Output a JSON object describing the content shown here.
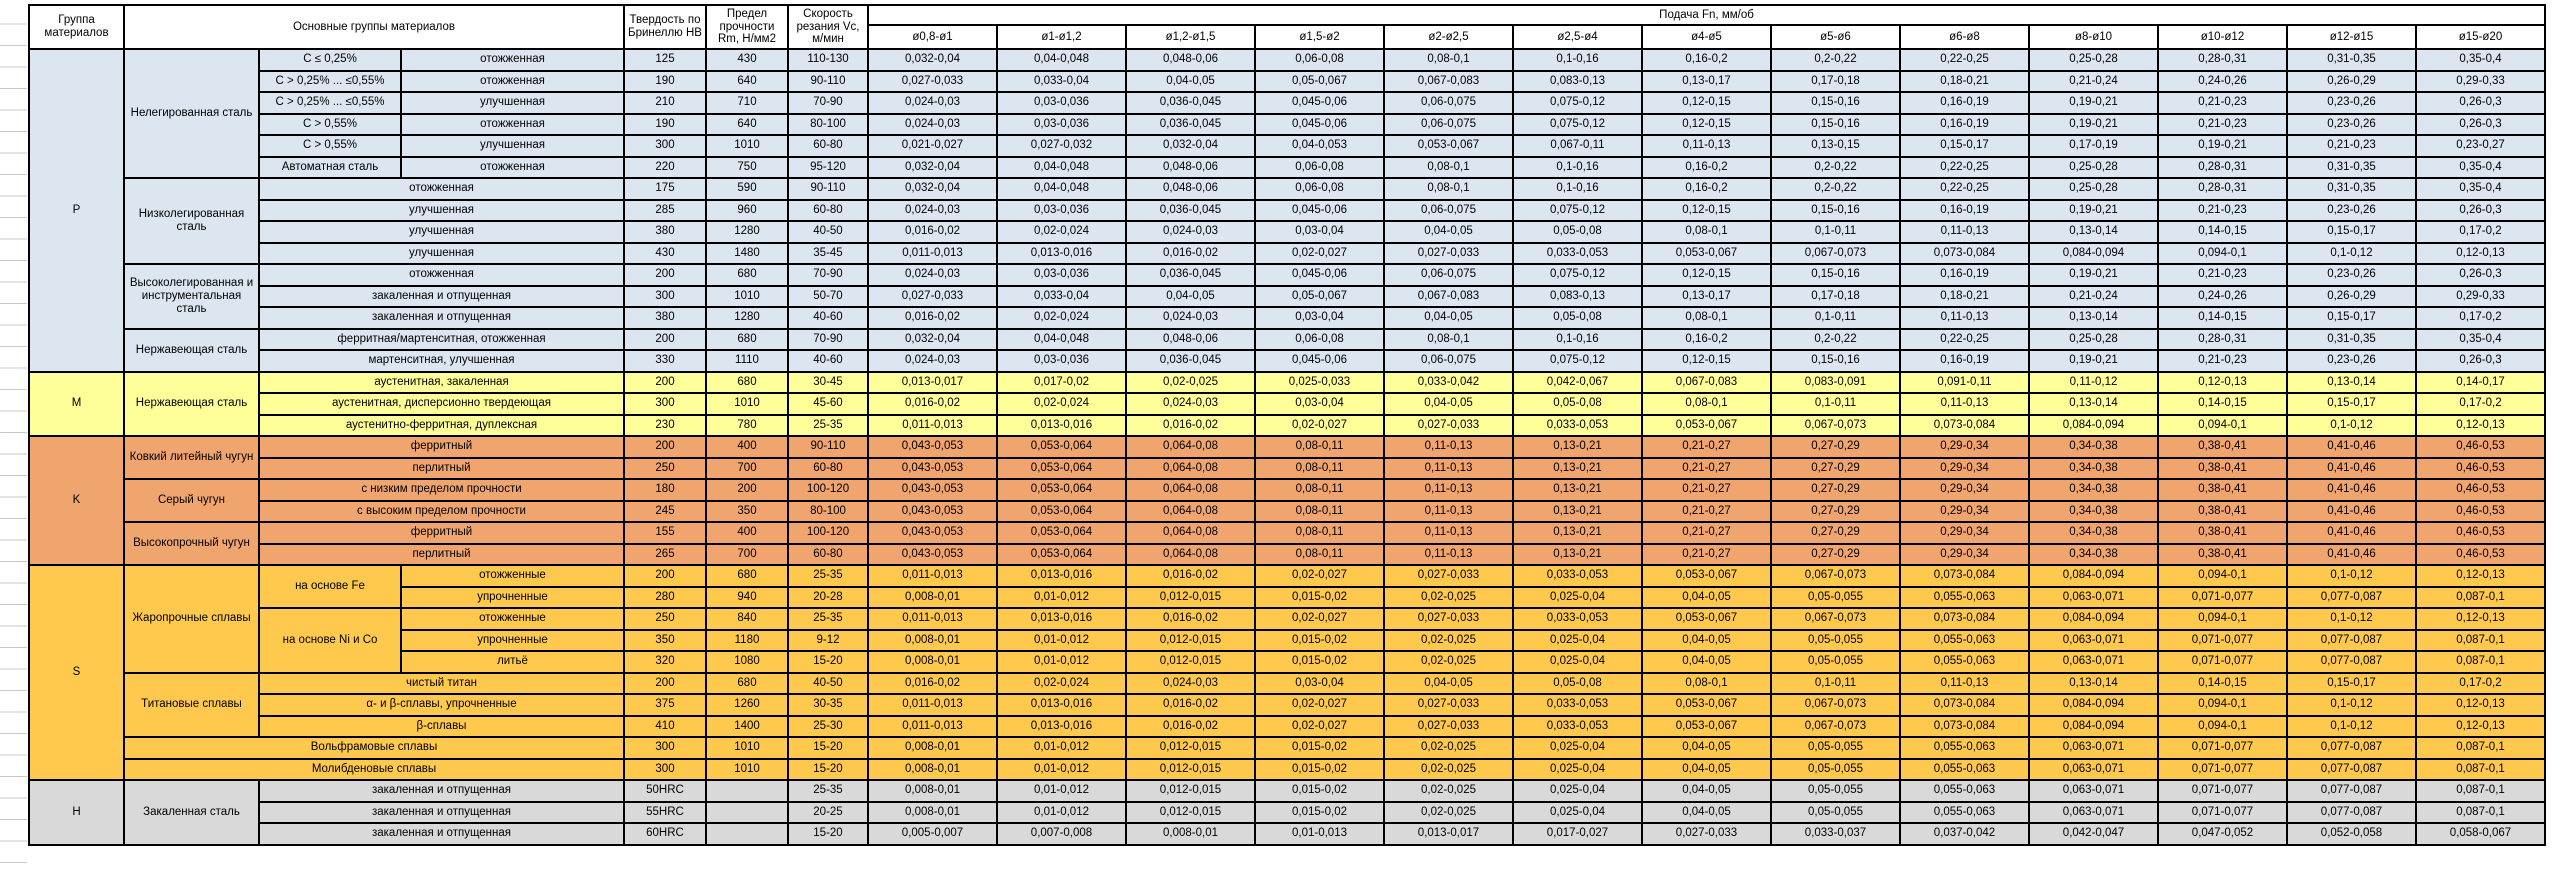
{
  "table": {
    "header": {
      "group": "Группа материалов",
      "materials": "Основные группы материалов",
      "hardness": "Твердость по Бринеллю HB",
      "strength": "Предел прочности Rm, Н/мм2",
      "speed": "Скорость резания Vc, м/мин",
      "feed": "Подача Fn, мм/об",
      "diameters": [
        "ø0,8-ø1",
        "ø1-ø1,2",
        "ø1,2-ø1,5",
        "ø1,5-ø2",
        "ø2-ø2,5",
        "ø2,5-ø4",
        "ø4-ø5",
        "ø5-ø6",
        "ø6-ø8",
        "ø8-ø10",
        "ø10-ø12",
        "ø12-ø15",
        "ø15-ø20"
      ]
    },
    "group_colors": {
      "P": "#dce6f1",
      "M": "#ffff99",
      "K": "#f0a46e",
      "S": "#ffc94e",
      "H": "#d9d9d9"
    },
    "patterns": {
      "A": [
        "0,032-0,04",
        "0,04-0,048",
        "0,048-0,06",
        "0,06-0,08",
        "0,08-0,1",
        "0,1-0,16",
        "0,16-0,2",
        "0,2-0,22",
        "0,22-0,25",
        "0,25-0,28",
        "0,28-0,31",
        "0,31-0,35",
        "0,35-0,4"
      ],
      "B": [
        "0,027-0,033",
        "0,033-0,04",
        "0,04-0,05",
        "0,05-0,067",
        "0,067-0,083",
        "0,083-0,13",
        "0,13-0,17",
        "0,17-0,18",
        "0,18-0,21",
        "0,21-0,24",
        "0,24-0,26",
        "0,26-0,29",
        "0,29-0,33"
      ],
      "C": [
        "0,024-0,03",
        "0,03-0,036",
        "0,036-0,045",
        "0,045-0,06",
        "0,06-0,075",
        "0,075-0,12",
        "0,12-0,15",
        "0,15-0,16",
        "0,16-0,19",
        "0,19-0,21",
        "0,21-0,23",
        "0,23-0,26",
        "0,26-0,3"
      ],
      "D": [
        "0,021-0,027",
        "0,027-0,032",
        "0,032-0,04",
        "0,04-0,053",
        "0,053-0,067",
        "0,067-0,11",
        "0,11-0,13",
        "0,13-0,15",
        "0,15-0,17",
        "0,17-0,19",
        "0,19-0,21",
        "0,21-0,23",
        "0,23-0,27"
      ],
      "E": [
        "0,016-0,02",
        "0,02-0,024",
        "0,024-0,03",
        "0,03-0,04",
        "0,04-0,05",
        "0,05-0,08",
        "0,08-0,1",
        "0,1-0,11",
        "0,11-0,13",
        "0,13-0,14",
        "0,14-0,15",
        "0,15-0,17",
        "0,17-0,2"
      ],
      "F": [
        "0,011-0,013",
        "0,013-0,016",
        "0,016-0,02",
        "0,02-0,027",
        "0,027-0,033",
        "0,033-0,053",
        "0,053-0,067",
        "0,067-0,073",
        "0,073-0,084",
        "0,084-0,094",
        "0,094-0,1",
        "0,1-0,12",
        "0,12-0,13"
      ],
      "G": [
        "0,013-0,017",
        "0,017-0,02",
        "0,02-0,025",
        "0,025-0,033",
        "0,033-0,042",
        "0,042-0,067",
        "0,067-0,083",
        "0,083-0,091",
        "0,091-0,11",
        "0,11-0,12",
        "0,12-0,13",
        "0,13-0,14",
        "0,14-0,17"
      ],
      "H": [
        "0,043-0,053",
        "0,053-0,064",
        "0,064-0,08",
        "0,08-0,11",
        "0,11-0,13",
        "0,13-0,21",
        "0,21-0,27",
        "0,27-0,29",
        "0,29-0,34",
        "0,34-0,38",
        "0,38-0,41",
        "0,41-0,46",
        "0,46-0,53"
      ],
      "I": [
        "0,008-0,01",
        "0,01-0,012",
        "0,012-0,015",
        "0,015-0,02",
        "0,02-0,025",
        "0,025-0,04",
        "0,04-0,05",
        "0,05-0,055",
        "0,055-0,063",
        "0,063-0,071",
        "0,071-0,077",
        "0,077-0,087",
        "0,087-0,1"
      ],
      "J": [
        "0,005-0,007",
        "0,007-0,008",
        "0,008-0,01",
        "0,01-0,013",
        "0,013-0,017",
        "0,017-0,027",
        "0,027-0,033",
        "0,033-0,037",
        "0,037-0,042",
        "0,042-0,047",
        "0,047-0,052",
        "0,052-0,058",
        "0,058-0,067"
      ]
    },
    "rows": [
      {
        "g": "P",
        "labels": [
          {
            "t": "P",
            "rs": 15,
            "n": "group-letter-cell"
          },
          {
            "t": "Нелегированная сталь",
            "rs": 6
          },
          {
            "t": "C ≤ 0,25%"
          },
          {
            "t": "отожженная"
          }
        ],
        "hb": "125",
        "rm": "430",
        "vc": "110-130",
        "fp": "A"
      },
      {
        "g": "P",
        "labels": [
          {
            "t": "C > 0,25% ... ≤0,55%"
          },
          {
            "t": "отожженная"
          }
        ],
        "hb": "190",
        "rm": "640",
        "vc": "90-110",
        "fp": "B"
      },
      {
        "g": "P",
        "labels": [
          {
            "t": "C > 0,25% ... ≤0,55%"
          },
          {
            "t": "улучшенная"
          }
        ],
        "hb": "210",
        "rm": "710",
        "vc": "70-90",
        "fp": "C"
      },
      {
        "g": "P",
        "labels": [
          {
            "t": "C > 0,55%"
          },
          {
            "t": "отожженная"
          }
        ],
        "hb": "190",
        "rm": "640",
        "vc": "80-100",
        "fp": "C"
      },
      {
        "g": "P",
        "labels": [
          {
            "t": "C > 0,55%"
          },
          {
            "t": "улучшенная"
          }
        ],
        "hb": "300",
        "rm": "1010",
        "vc": "60-80",
        "fp": "D"
      },
      {
        "g": "P",
        "labels": [
          {
            "t": "Автоматная сталь"
          },
          {
            "t": "отожженная"
          }
        ],
        "hb": "220",
        "rm": "750",
        "vc": "95-120",
        "fp": "A"
      },
      {
        "g": "P",
        "labels": [
          {
            "t": "Низколегированная сталь",
            "rs": 4
          },
          {
            "t": "отожженная",
            "cs": 2
          }
        ],
        "hb": "175",
        "rm": "590",
        "vc": "90-110",
        "fp": "A"
      },
      {
        "g": "P",
        "labels": [
          {
            "t": "улучшенная",
            "cs": 2
          }
        ],
        "hb": "285",
        "rm": "960",
        "vc": "60-80",
        "fp": "C"
      },
      {
        "g": "P",
        "labels": [
          {
            "t": "улучшенная",
            "cs": 2
          }
        ],
        "hb": "380",
        "rm": "1280",
        "vc": "40-50",
        "fp": "E"
      },
      {
        "g": "P",
        "labels": [
          {
            "t": "улучшенная",
            "cs": 2
          }
        ],
        "hb": "430",
        "rm": "1480",
        "vc": "35-45",
        "fp": "F"
      },
      {
        "g": "P",
        "labels": [
          {
            "t": "Высоколегированная и инструментальная сталь",
            "rs": 3
          },
          {
            "t": "отожженная",
            "cs": 2
          }
        ],
        "hb": "200",
        "rm": "680",
        "vc": "70-90",
        "fp": "C"
      },
      {
        "g": "P",
        "labels": [
          {
            "t": "закаленная и отпущенная",
            "cs": 2
          }
        ],
        "hb": "300",
        "rm": "1010",
        "vc": "50-70",
        "fp": "B"
      },
      {
        "g": "P",
        "labels": [
          {
            "t": "закаленная и отпущенная",
            "cs": 2
          }
        ],
        "hb": "380",
        "rm": "1280",
        "vc": "40-60",
        "fp": "E"
      },
      {
        "g": "P",
        "labels": [
          {
            "t": "Нержавеющая сталь",
            "rs": 2
          },
          {
            "t": "ферритная/мартенситная, отожженная",
            "cs": 2
          }
        ],
        "hb": "200",
        "rm": "680",
        "vc": "70-90",
        "fp": "A"
      },
      {
        "g": "P",
        "labels": [
          {
            "t": "мартенситная, улучшенная",
            "cs": 2
          }
        ],
        "hb": "330",
        "rm": "1110",
        "vc": "40-60",
        "fp": "C"
      },
      {
        "g": "M",
        "labels": [
          {
            "t": "M",
            "rs": 3,
            "n": "group-letter-cell"
          },
          {
            "t": "Нержавеющая сталь",
            "rs": 3
          },
          {
            "t": "аустенитная, закаленная",
            "cs": 2
          }
        ],
        "hb": "200",
        "rm": "680",
        "vc": "30-45",
        "fp": "G"
      },
      {
        "g": "M",
        "labels": [
          {
            "t": "аустенитная, дисперсионно твердеющая",
            "cs": 2
          }
        ],
        "hb": "300",
        "rm": "1010",
        "vc": "45-60",
        "fp": "E"
      },
      {
        "g": "M",
        "labels": [
          {
            "t": "аустенитно-ферритная, дуплексная",
            "cs": 2
          }
        ],
        "hb": "230",
        "rm": "780",
        "vc": "25-35",
        "fp": "F"
      },
      {
        "g": "K",
        "labels": [
          {
            "t": "K",
            "rs": 6,
            "n": "group-letter-cell"
          },
          {
            "t": "Ковкий литейный чугун",
            "rs": 2
          },
          {
            "t": "ферритный",
            "cs": 2
          }
        ],
        "hb": "200",
        "rm": "400",
        "vc": "90-110",
        "fp": "H"
      },
      {
        "g": "K",
        "labels": [
          {
            "t": "перлитный",
            "cs": 2
          }
        ],
        "hb": "250",
        "rm": "700",
        "vc": "60-80",
        "fp": "H"
      },
      {
        "g": "K",
        "labels": [
          {
            "t": "Серый чугун",
            "rs": 2
          },
          {
            "t": "с низким пределом прочности",
            "cs": 2
          }
        ],
        "hb": "180",
        "rm": "200",
        "vc": "100-120",
        "fp": "H"
      },
      {
        "g": "K",
        "labels": [
          {
            "t": "с высоким пределом прочности",
            "cs": 2
          }
        ],
        "hb": "245",
        "rm": "350",
        "vc": "80-100",
        "fp": "H"
      },
      {
        "g": "K",
        "labels": [
          {
            "t": "Высокопрочный чугун",
            "rs": 2
          },
          {
            "t": "ферритный",
            "cs": 2
          }
        ],
        "hb": "155",
        "rm": "400",
        "vc": "100-120",
        "fp": "H"
      },
      {
        "g": "K",
        "labels": [
          {
            "t": "перлитный",
            "cs": 2
          }
        ],
        "hb": "265",
        "rm": "700",
        "vc": "60-80",
        "fp": "H"
      },
      {
        "g": "S",
        "labels": [
          {
            "t": "S",
            "rs": 10,
            "n": "group-letter-cell"
          },
          {
            "t": "Жаропрочные сплавы",
            "rs": 5
          },
          {
            "t": "на основе Fe",
            "rs": 2
          },
          {
            "t": "отожженные"
          }
        ],
        "hb": "200",
        "rm": "680",
        "vc": "25-35",
        "fp": "F"
      },
      {
        "g": "S",
        "labels": [
          {
            "t": "упрочненные"
          }
        ],
        "hb": "280",
        "rm": "940",
        "vc": "20-28",
        "fp": "I"
      },
      {
        "g": "S",
        "labels": [
          {
            "t": "на основе Ni и Co",
            "rs": 3
          },
          {
            "t": "отожженные"
          }
        ],
        "hb": "250",
        "rm": "840",
        "vc": "25-35",
        "fp": "F"
      },
      {
        "g": "S",
        "labels": [
          {
            "t": "упрочненные"
          }
        ],
        "hb": "350",
        "rm": "1180",
        "vc": "9-12",
        "fp": "I"
      },
      {
        "g": "S",
        "labels": [
          {
            "t": "литьё"
          }
        ],
        "hb": "320",
        "rm": "1080",
        "vc": "15-20",
        "fp": "I"
      },
      {
        "g": "S",
        "labels": [
          {
            "t": "Титановые сплавы",
            "rs": 3
          },
          {
            "t": "чистый титан",
            "cs": 2
          }
        ],
        "hb": "200",
        "rm": "680",
        "vc": "40-50",
        "fp": "E"
      },
      {
        "g": "S",
        "labels": [
          {
            "t": "α- и β-сплавы, упрочненные",
            "cs": 2
          }
        ],
        "hb": "375",
        "rm": "1260",
        "vc": "30-35",
        "fp": "F"
      },
      {
        "g": "S",
        "labels": [
          {
            "t": "β-сплавы",
            "cs": 2
          }
        ],
        "hb": "410",
        "rm": "1400",
        "vc": "25-30",
        "fp": "F"
      },
      {
        "g": "S",
        "labels": [
          {
            "t": "Вольфрамовые сплавы",
            "cs": 3
          }
        ],
        "hb": "300",
        "rm": "1010",
        "vc": "15-20",
        "fp": "I"
      },
      {
        "g": "S",
        "labels": [
          {
            "t": "Молибденовые сплавы",
            "cs": 3
          }
        ],
        "hb": "300",
        "rm": "1010",
        "vc": "15-20",
        "fp": "I"
      },
      {
        "g": "H",
        "labels": [
          {
            "t": "H",
            "rs": 3,
            "n": "group-letter-cell"
          },
          {
            "t": "Закаленная сталь",
            "rs": 3
          },
          {
            "t": "закаленная и отпущенная",
            "cs": 2
          }
        ],
        "hb": "50HRC",
        "rm": "",
        "vc": "25-35",
        "fp": "I"
      },
      {
        "g": "H",
        "labels": [
          {
            "t": "закаленная и отпущенная",
            "cs": 2
          }
        ],
        "hb": "55HRC",
        "rm": "",
        "vc": "20-25",
        "fp": "I"
      },
      {
        "g": "H",
        "labels": [
          {
            "t": "закаленная и отпущенная",
            "cs": 2
          }
        ],
        "hb": "60HRC",
        "rm": "",
        "vc": "15-20",
        "fp": "J"
      }
    ]
  }
}
